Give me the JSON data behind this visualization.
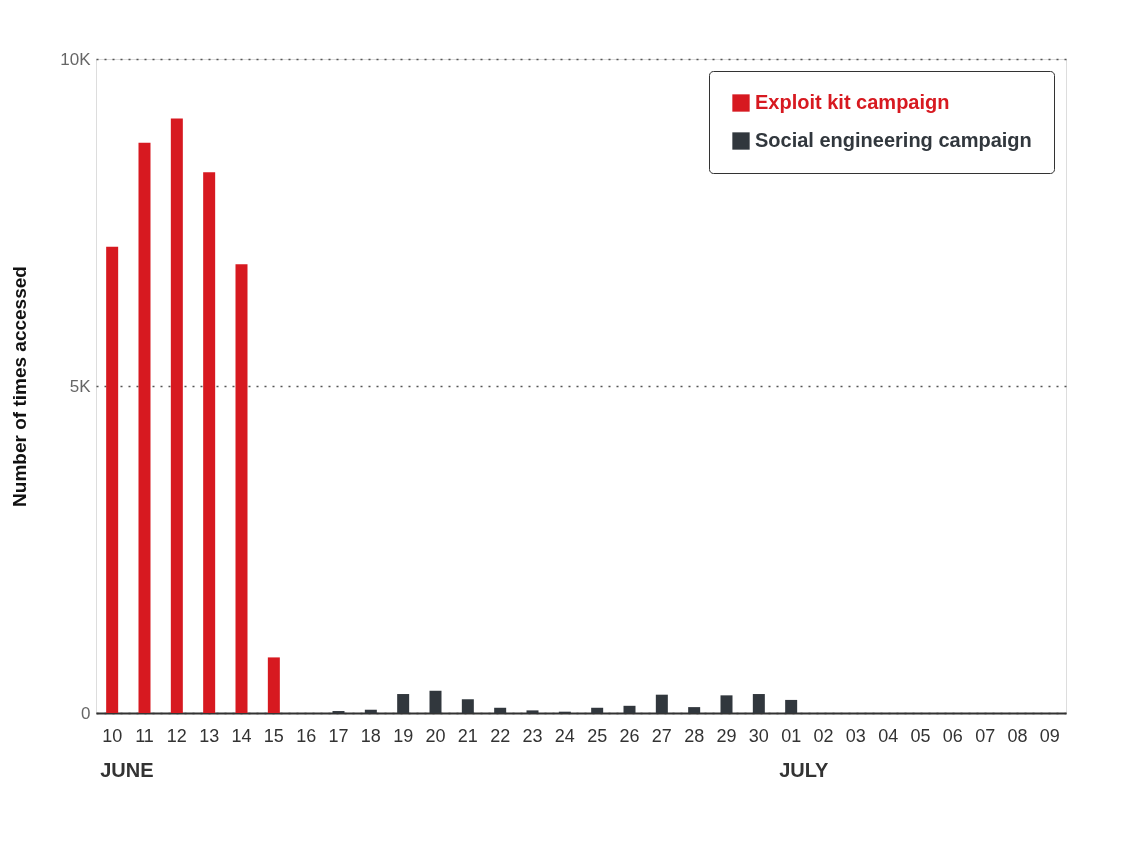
{
  "chart_data": {
    "type": "bar",
    "ylabel": "Number of times accessed",
    "categories": [
      "10",
      "11",
      "12",
      "13",
      "14",
      "15",
      "16",
      "17",
      "18",
      "19",
      "20",
      "21",
      "22",
      "23",
      "24",
      "25",
      "26",
      "27",
      "28",
      "29",
      "30",
      "01",
      "02",
      "03",
      "04",
      "05",
      "06",
      "07",
      "08",
      "09"
    ],
    "series": [
      {
        "name": "Exploit kit campaign",
        "color": "#d71920",
        "values": [
          7130,
          8720,
          9090,
          8270,
          6860,
          850,
          null,
          null,
          null,
          null,
          null,
          null,
          null,
          null,
          null,
          null,
          null,
          null,
          null,
          null,
          null,
          null,
          null,
          null,
          null,
          null,
          null,
          null,
          null,
          null
        ]
      },
      {
        "name": "Social engineering campaign",
        "color": "#31373d",
        "values": [
          null,
          null,
          null,
          null,
          null,
          null,
          null,
          30,
          50,
          290,
          340,
          210,
          80,
          40,
          20,
          80,
          110,
          280,
          90,
          270,
          290,
          200,
          null,
          null,
          null,
          null,
          null,
          null,
          null,
          null
        ]
      }
    ],
    "ylim": [
      0,
      10000
    ],
    "yticks": [
      0,
      {
        "value": 5000,
        "label": "5K"
      },
      {
        "value": 10000,
        "label": "10K"
      }
    ],
    "grid": "y",
    "legend": "top right",
    "annotations": [
      "JUNE",
      "JULY"
    ]
  }
}
